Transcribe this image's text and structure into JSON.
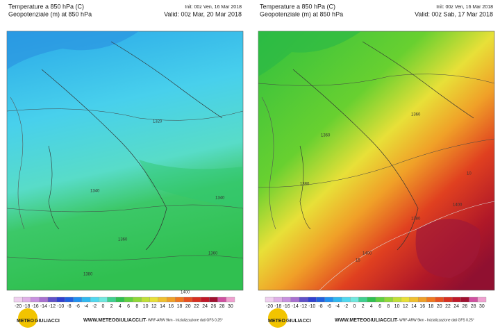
{
  "panels": [
    {
      "title": "Temperature a 850 hPa  (C)",
      "subtitle": "Geopotenziale  (m)   at  850 hPa",
      "init": "Init: 00z Ven, 16 Mar 2018",
      "valid": "Valid: 00z Mar, 20 Mar 2018",
      "contour_labels": [
        "1320",
        "1340",
        "1340",
        "1360",
        "1360",
        "1380",
        "1400"
      ]
    },
    {
      "title": "Temperature a 850 hPa  (C)",
      "subtitle": "Geopotenziale  (m)   at  850 hPa",
      "init": "Init: 00z Ven, 16 Mar 2018",
      "valid": "Valid: 00z Sab, 17 Mar 2018",
      "contour_labels": [
        "1360",
        "1360",
        "1380",
        "1380",
        "1400",
        "1400",
        "10",
        "15"
      ]
    }
  ],
  "scale": [
    -20,
    -18,
    -16,
    -14,
    -12,
    -10,
    -8,
    -6,
    -4,
    -2,
    0,
    2,
    4,
    6,
    8,
    10,
    12,
    14,
    16,
    18,
    20,
    22,
    24,
    26,
    28,
    30
  ],
  "footer": {
    "logo_a": "METEO",
    "logo_b": "GIULIACCI",
    "url": "WWW.METEOGIULIACCI.IT",
    "credits": "- WRF-ARW 9km - Inizializzazione dati GFS 0.25°"
  }
}
